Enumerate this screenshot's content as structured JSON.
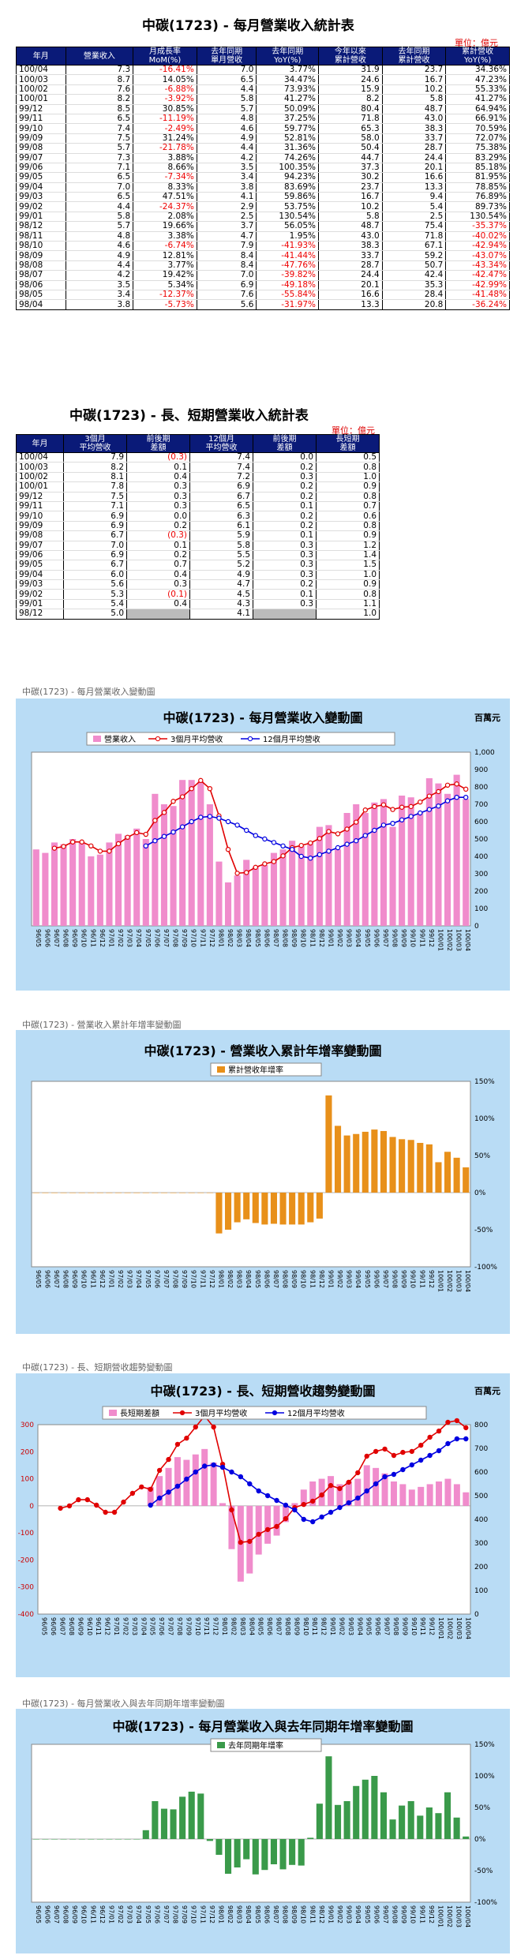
{
  "table1": {
    "title": "中碳(1723) - 每月營業收入統計表",
    "unit": "單位：億元",
    "headers": [
      "年月",
      "營業收入",
      "月成長率\nMoM(%)",
      "去年同期\n單月營收",
      "去年同期\nYoY(%)",
      "今年以來\n累計營收",
      "去年同期\n累計營收",
      "累計營收\nYoY(%)"
    ],
    "rows": [
      [
        "100/04",
        "7.3",
        "-16.41%",
        "7.0",
        "3.77%",
        "31.9",
        "23.7",
        "34.36%"
      ],
      [
        "100/03",
        "8.7",
        "14.05%",
        "6.5",
        "34.47%",
        "24.6",
        "16.7",
        "47.23%"
      ],
      [
        "100/02",
        "7.6",
        "-6.88%",
        "4.4",
        "73.93%",
        "15.9",
        "10.2",
        "55.33%"
      ],
      [
        "100/01",
        "8.2",
        "-3.92%",
        "5.8",
        "41.27%",
        "8.2",
        "5.8",
        "41.27%"
      ],
      [
        "99/12",
        "8.5",
        "30.85%",
        "5.7",
        "50.09%",
        "80.4",
        "48.7",
        "64.94%"
      ],
      [
        "99/11",
        "6.5",
        "-11.19%",
        "4.8",
        "37.25%",
        "71.8",
        "43.0",
        "66.91%"
      ],
      [
        "99/10",
        "7.4",
        "-2.49%",
        "4.6",
        "59.77%",
        "65.3",
        "38.3",
        "70.59%"
      ],
      [
        "99/09",
        "7.5",
        "31.24%",
        "4.9",
        "52.81%",
        "58.0",
        "33.7",
        "72.07%"
      ],
      [
        "99/08",
        "5.7",
        "-21.78%",
        "4.4",
        "31.36%",
        "50.4",
        "28.7",
        "75.38%"
      ],
      [
        "99/07",
        "7.3",
        "3.88%",
        "4.2",
        "74.26%",
        "44.7",
        "24.4",
        "83.29%"
      ],
      [
        "99/06",
        "7.1",
        "8.66%",
        "3.5",
        "100.35%",
        "37.3",
        "20.1",
        "85.18%"
      ],
      [
        "99/05",
        "6.5",
        "-7.34%",
        "3.4",
        "94.23%",
        "30.2",
        "16.6",
        "81.95%"
      ],
      [
        "99/04",
        "7.0",
        "8.33%",
        "3.8",
        "83.69%",
        "23.7",
        "13.3",
        "78.85%"
      ],
      [
        "99/03",
        "6.5",
        "47.51%",
        "4.1",
        "59.86%",
        "16.7",
        "9.4",
        "76.89%"
      ],
      [
        "99/02",
        "4.4",
        "-24.37%",
        "2.9",
        "53.75%",
        "10.2",
        "5.4",
        "89.73%"
      ],
      [
        "99/01",
        "5.8",
        "2.08%",
        "2.5",
        "130.54%",
        "5.8",
        "2.5",
        "130.54%"
      ],
      [
        "98/12",
        "5.7",
        "19.66%",
        "3.7",
        "56.05%",
        "48.7",
        "75.4",
        "-35.37%"
      ],
      [
        "98/11",
        "4.8",
        "3.38%",
        "4.7",
        "1.95%",
        "43.0",
        "71.8",
        "-40.02%"
      ],
      [
        "98/10",
        "4.6",
        "-6.74%",
        "7.9",
        "-41.93%",
        "38.3",
        "67.1",
        "-42.94%"
      ],
      [
        "98/09",
        "4.9",
        "12.81%",
        "8.4",
        "-41.44%",
        "33.7",
        "59.2",
        "-43.07%"
      ],
      [
        "98/08",
        "4.4",
        "3.77%",
        "8.4",
        "-47.76%",
        "28.7",
        "50.7",
        "-43.34%"
      ],
      [
        "98/07",
        "4.2",
        "19.42%",
        "7.0",
        "-39.82%",
        "24.4",
        "42.4",
        "-42.47%"
      ],
      [
        "98/06",
        "3.5",
        "5.34%",
        "6.9",
        "-49.18%",
        "20.1",
        "35.3",
        "-42.99%"
      ],
      [
        "98/05",
        "3.4",
        "-12.37%",
        "7.6",
        "-55.84%",
        "16.6",
        "28.4",
        "-41.48%"
      ],
      [
        "98/04",
        "3.8",
        "-5.73%",
        "5.6",
        "-31.97%",
        "13.3",
        "20.8",
        "-36.24%"
      ]
    ]
  },
  "table2": {
    "title": "中碳(1723) - 長、短期營業收入統計表",
    "unit": "單位：億元",
    "headers": [
      "年月",
      "3個月\n平均營收",
      "前後期\n差額",
      "12個月\n平均營收",
      "前後期\n差額",
      "長短期\n差額"
    ],
    "rows": [
      [
        "100/04",
        "7.9",
        "(0.3)",
        "7.4",
        "0.0",
        "0.5"
      ],
      [
        "100/03",
        "8.2",
        "0.1",
        "7.4",
        "0.2",
        "0.8"
      ],
      [
        "100/02",
        "8.1",
        "0.4",
        "7.2",
        "0.3",
        "1.0"
      ],
      [
        "100/01",
        "7.8",
        "0.3",
        "6.9",
        "0.2",
        "0.9"
      ],
      [
        "99/12",
        "7.5",
        "0.3",
        "6.7",
        "0.2",
        "0.8"
      ],
      [
        "99/11",
        "7.1",
        "0.3",
        "6.5",
        "0.1",
        "0.7"
      ],
      [
        "99/10",
        "6.9",
        "0.0",
        "6.3",
        "0.2",
        "0.6"
      ],
      [
        "99/09",
        "6.9",
        "0.2",
        "6.1",
        "0.2",
        "0.8"
      ],
      [
        "99/08",
        "6.7",
        "(0.3)",
        "5.9",
        "0.1",
        "0.9"
      ],
      [
        "99/07",
        "7.0",
        "0.1",
        "5.8",
        "0.3",
        "1.2"
      ],
      [
        "99/06",
        "6.9",
        "0.2",
        "5.5",
        "0.3",
        "1.4"
      ],
      [
        "99/05",
        "6.7",
        "0.7",
        "5.2",
        "0.3",
        "1.5"
      ],
      [
        "99/04",
        "6.0",
        "0.4",
        "4.9",
        "0.3",
        "1.0"
      ],
      [
        "99/03",
        "5.6",
        "0.3",
        "4.7",
        "0.2",
        "0.9"
      ],
      [
        "99/02",
        "5.3",
        "(0.1)",
        "4.5",
        "0.1",
        "0.8"
      ],
      [
        "99/01",
        "5.4",
        "0.4",
        "4.3",
        "0.3",
        "1.1"
      ],
      [
        "98/12",
        "5.0",
        "",
        "4.1",
        "",
        "1.0"
      ]
    ]
  },
  "captions": {
    "c1": "中碳(1723) - 每月營業收入變動圖",
    "c2": "中碳(1723) -  營業收入累計年增率變動圖",
    "c3": "中碳(1723) - 長、短期營收趨勢變動圖",
    "c4": "中碳(1723) - 每月營業收入與去年同期年增率變動圖"
  },
  "colors": {
    "pink": "#f08ccc",
    "red": "#e00000",
    "blue": "#0000e0",
    "orange": "#e8901a",
    "green": "#3a9a4a",
    "panel": "#b9dcf5",
    "header": "#0a1a78"
  },
  "chart_data": [
    {
      "type": "bar+line",
      "title": "中碳(1723) - 每月營業收入變動圖",
      "unit_label": "百萬元",
      "ylim": [
        0,
        1000
      ],
      "x": [
        "96/05",
        "96/06",
        "96/07",
        "96/08",
        "96/09",
        "96/10",
        "96/11",
        "96/12",
        "97/01",
        "97/02",
        "97/03",
        "97/04",
        "97/05",
        "97/06",
        "97/07",
        "97/08",
        "97/09",
        "97/10",
        "97/11",
        "97/12",
        "98/01",
        "98/02",
        "98/03",
        "98/04",
        "98/05",
        "98/06",
        "98/07",
        "98/08",
        "98/09",
        "98/10",
        "98/11",
        "98/12",
        "99/01",
        "99/02",
        "99/03",
        "99/04",
        "99/05",
        "99/06",
        "99/07",
        "99/08",
        "99/09",
        "99/10",
        "99/11",
        "99/12",
        "100/01",
        "100/02",
        "100/03",
        "100/04"
      ],
      "series": [
        {
          "name": "營業收入",
          "kind": "bar",
          "color": "#f08ccc",
          "values": [
            440,
            420,
            480,
            470,
            500,
            480,
            400,
            410,
            480,
            530,
            520,
            560,
            500,
            760,
            700,
            690,
            840,
            840,
            830,
            700,
            370,
            250,
            290,
            380,
            340,
            350,
            420,
            440,
            490,
            460,
            480,
            570,
            580,
            440,
            650,
            700,
            650,
            710,
            730,
            570,
            750,
            740,
            650,
            850,
            820,
            760,
            870,
            730
          ]
        },
        {
          "name": "3個月平均營收",
          "kind": "line",
          "color": "#e00000",
          "values": [
            null,
            null,
            447,
            457,
            483,
            483,
            460,
            430,
            430,
            473,
            510,
            537,
            527,
            607,
            653,
            717,
            743,
            790,
            837,
            790,
            633,
            440,
            303,
            307,
            337,
            357,
            370,
            403,
            450,
            463,
            477,
            503,
            543,
            530,
            557,
            597,
            667,
            687,
            697,
            670,
            683,
            687,
            713,
            747,
            773,
            810,
            817,
            787
          ]
        },
        {
          "name": "12個月平均營收",
          "kind": "line",
          "color": "#0000e0",
          "values": [
            null,
            null,
            null,
            null,
            null,
            null,
            null,
            null,
            null,
            null,
            null,
            null,
            460,
            490,
            515,
            540,
            570,
            600,
            625,
            630,
            620,
            600,
            580,
            550,
            520,
            500,
            480,
            460,
            440,
            400,
            390,
            410,
            430,
            450,
            470,
            490,
            520,
            550,
            580,
            590,
            610,
            630,
            650,
            670,
            690,
            720,
            740,
            740
          ]
        }
      ],
      "legend": [
        "營業收入",
        "3個月平均營收",
        "12個月平均營收"
      ]
    },
    {
      "type": "bar",
      "title": "中碳(1723) -  營業收入累計年增率變動圖",
      "ylim": [
        -100,
        150
      ],
      "ytick_suffix": "%",
      "x": [
        "96/05",
        "96/06",
        "96/07",
        "96/08",
        "96/09",
        "96/10",
        "96/11",
        "96/12",
        "97/01",
        "97/02",
        "97/03",
        "97/04",
        "97/05",
        "97/06",
        "97/07",
        "97/08",
        "97/09",
        "97/10",
        "97/11",
        "97/12",
        "98/01",
        "98/02",
        "98/03",
        "98/04",
        "98/05",
        "98/06",
        "98/07",
        "98/08",
        "98/09",
        "98/10",
        "98/11",
        "98/12",
        "99/01",
        "99/02",
        "99/03",
        "99/04",
        "99/05",
        "99/06",
        "99/07",
        "99/08",
        "99/09",
        "99/10",
        "99/11",
        "99/12",
        "100/01",
        "100/02",
        "100/03",
        "100/04"
      ],
      "series": [
        {
          "name": "累計營收年增率",
          "color": "#e8901a",
          "values": [
            0,
            0,
            0,
            0,
            0,
            0,
            0,
            0,
            0,
            0,
            0,
            0,
            0,
            0,
            0,
            0,
            0,
            0,
            0,
            0,
            -55,
            -50,
            -40,
            -36,
            -41,
            -43,
            -42,
            -43,
            -43,
            -43,
            -40,
            -35,
            131,
            90,
            77,
            79,
            82,
            85,
            83,
            75,
            72,
            71,
            67,
            65,
            41,
            55,
            47,
            34
          ]
        }
      ],
      "legend": [
        "累計營收年增率"
      ]
    },
    {
      "type": "bar+line",
      "title": "中碳(1723) - 長、短期營收趨勢變動圖",
      "unit_label": "百萬元",
      "ylim_left": [
        -400,
        300
      ],
      "ylim_right": [
        0,
        800
      ],
      "x": [
        "96/05",
        "96/06",
        "96/07",
        "96/08",
        "96/09",
        "96/10",
        "96/11",
        "96/12",
        "97/01",
        "97/02",
        "97/03",
        "97/04",
        "97/05",
        "97/06",
        "97/07",
        "97/08",
        "97/09",
        "97/10",
        "97/11",
        "97/12",
        "98/01",
        "98/02",
        "98/03",
        "98/04",
        "98/05",
        "98/06",
        "98/07",
        "98/08",
        "98/09",
        "98/10",
        "98/11",
        "98/12",
        "99/01",
        "99/02",
        "99/03",
        "99/04",
        "99/05",
        "99/06",
        "99/07",
        "99/08",
        "99/09",
        "99/10",
        "99/11",
        "99/12",
        "100/01",
        "100/02",
        "100/03",
        "100/04"
      ],
      "series": [
        {
          "name": "長短期差額",
          "kind": "bar",
          "axis": "left",
          "color": "#f08ccc",
          "values": [
            null,
            null,
            null,
            null,
            null,
            null,
            null,
            null,
            null,
            null,
            null,
            null,
            70,
            110,
            140,
            180,
            170,
            190,
            210,
            160,
            10,
            -160,
            -280,
            -250,
            -180,
            -140,
            -110,
            -60,
            10,
            60,
            90,
            100,
            110,
            80,
            90,
            100,
            150,
            140,
            120,
            90,
            80,
            60,
            70,
            80,
            90,
            100,
            80,
            50
          ]
        },
        {
          "name": "3個月平均營收",
          "kind": "line",
          "axis": "right",
          "color": "#e00000",
          "values": [
            null,
            null,
            447,
            457,
            483,
            483,
            460,
            430,
            430,
            473,
            510,
            537,
            527,
            607,
            653,
            717,
            743,
            790,
            837,
            790,
            633,
            440,
            303,
            307,
            337,
            357,
            370,
            403,
            450,
            463,
            477,
            503,
            543,
            530,
            557,
            597,
            667,
            687,
            697,
            670,
            683,
            687,
            713,
            747,
            773,
            810,
            817,
            787
          ]
        },
        {
          "name": "12個月平均營收",
          "kind": "line",
          "axis": "right",
          "color": "#0000e0",
          "values": [
            null,
            null,
            null,
            null,
            null,
            null,
            null,
            null,
            null,
            null,
            null,
            null,
            460,
            490,
            515,
            540,
            570,
            600,
            625,
            630,
            620,
            600,
            580,
            550,
            520,
            500,
            480,
            460,
            440,
            400,
            390,
            410,
            430,
            450,
            470,
            490,
            520,
            550,
            580,
            590,
            610,
            630,
            650,
            670,
            690,
            720,
            740,
            740
          ]
        }
      ],
      "legend": [
        "長短期差額",
        "3個月平均營收",
        "12個月平均營收"
      ]
    },
    {
      "type": "bar",
      "title": "中碳(1723) - 每月營業收入與去年同期年增率變動圖",
      "ylim": [
        -100,
        150
      ],
      "ytick_suffix": "%",
      "x": [
        "96/05",
        "96/06",
        "96/07",
        "96/08",
        "96/09",
        "96/10",
        "96/11",
        "96/12",
        "97/01",
        "97/02",
        "97/03",
        "97/04",
        "97/05",
        "97/06",
        "97/07",
        "97/08",
        "97/09",
        "97/10",
        "97/11",
        "97/12",
        "98/01",
        "98/02",
        "98/03",
        "98/04",
        "98/05",
        "98/06",
        "98/07",
        "98/08",
        "98/09",
        "98/10",
        "98/11",
        "98/12",
        "99/01",
        "99/02",
        "99/03",
        "99/04",
        "99/05",
        "99/06",
        "99/07",
        "99/08",
        "99/09",
        "99/10",
        "99/11",
        "99/12",
        "100/01",
        "100/02",
        "100/03",
        "100/04"
      ],
      "series": [
        {
          "name": "去年同期年增率",
          "color": "#3a9a4a",
          "values": [
            0,
            0,
            0,
            0,
            0,
            0,
            0,
            0,
            0,
            0,
            0,
            0,
            14,
            60,
            48,
            47,
            67,
            75,
            72,
            -3,
            -25,
            -55,
            -45,
            -32,
            -56,
            -49,
            -40,
            -48,
            -41,
            -42,
            2,
            56,
            131,
            54,
            60,
            84,
            94,
            100,
            74,
            31,
            53,
            60,
            37,
            50,
            41,
            74,
            34,
            4
          ]
        }
      ],
      "legend": [
        "去年同期年增率"
      ]
    }
  ]
}
